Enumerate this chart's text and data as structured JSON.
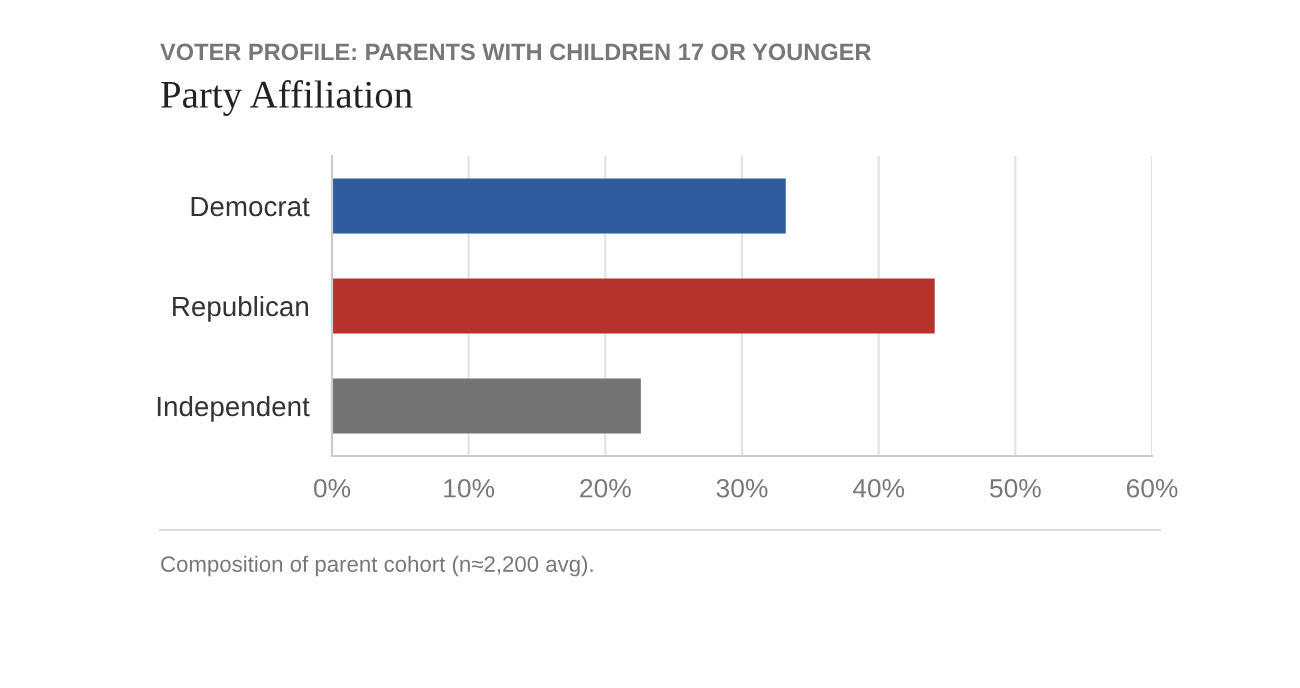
{
  "chart_data": {
    "type": "bar",
    "orientation": "horizontal",
    "subtitle": "VOTER PROFILE: PARENTS WITH CHILDREN 17 OR YOUNGER",
    "title": "Party Affiliation",
    "categories": [
      "Democrat",
      "Republican",
      "Independent"
    ],
    "values": [
      33.2,
      44.1,
      22.6
    ],
    "colors": [
      "#2d5b9e",
      "#b5332b",
      "#737373"
    ],
    "xlim": [
      0,
      60
    ],
    "xticks": [
      {
        "value": 0,
        "label": "0%"
      },
      {
        "value": 10,
        "label": "10%"
      },
      {
        "value": 20,
        "label": "20%"
      },
      {
        "value": 30,
        "label": "30%"
      },
      {
        "value": 40,
        "label": "40%"
      },
      {
        "value": 50,
        "label": "50%"
      },
      {
        "value": 60,
        "label": "60%"
      }
    ],
    "grid": "x",
    "annotations": [
      "Composition of parent cohort (n≈2,200 avg)."
    ]
  }
}
